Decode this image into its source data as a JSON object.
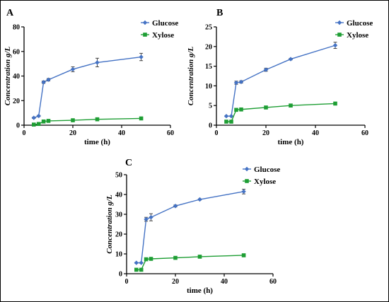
{
  "colors": {
    "glucose": "#4472C4",
    "xylose": "#1E9E34",
    "axis": "#000000"
  },
  "chart_data": [
    {
      "type": "line",
      "panel_label": "A",
      "xlabel": "time (h)",
      "ylabel": "Concentration g/L",
      "xlim": [
        0,
        60
      ],
      "ylim": [
        0,
        80
      ],
      "xticks": [
        0,
        20,
        40,
        60
      ],
      "yticks": [
        0,
        20,
        40,
        60,
        80
      ],
      "legend": "top-right",
      "grid": false,
      "series": [
        {
          "name": "Glucose",
          "marker": "diamond",
          "x": [
            4,
            6,
            8,
            10,
            20,
            30,
            48
          ],
          "y": [
            6,
            7.5,
            35,
            37,
            45.5,
            51,
            55.5
          ],
          "err": [
            0.5,
            0.5,
            1,
            1,
            2,
            3.5,
            3
          ]
        },
        {
          "name": "Xylose",
          "marker": "square",
          "x": [
            4,
            6,
            8,
            10,
            20,
            30,
            48
          ],
          "y": [
            0.5,
            1,
            3,
            3.5,
            4,
            4.8,
            5.5
          ],
          "err": [
            0,
            0,
            0.5,
            0.5,
            0.5,
            0.5,
            0.5
          ]
        }
      ]
    },
    {
      "type": "line",
      "panel_label": "B",
      "xlabel": "time (h)",
      "ylabel": "Concentration g/L",
      "xlim": [
        0,
        60
      ],
      "ylim": [
        0,
        25
      ],
      "xticks": [
        0,
        20,
        40,
        60
      ],
      "yticks": [
        0,
        5,
        10,
        15,
        20,
        25
      ],
      "legend": "top-right",
      "grid": false,
      "series": [
        {
          "name": "Glucose",
          "marker": "diamond",
          "x": [
            4,
            6,
            8,
            10,
            20,
            30,
            48
          ],
          "y": [
            2.3,
            2.3,
            10.8,
            11,
            14.1,
            16.8,
            20.3
          ],
          "err": [
            0.1,
            0.1,
            0.4,
            0.3,
            0.4,
            0.2,
            0.8
          ]
        },
        {
          "name": "Xylose",
          "marker": "square",
          "x": [
            4,
            6,
            8,
            10,
            20,
            30,
            48
          ],
          "y": [
            0.9,
            0.9,
            3.9,
            4.0,
            4.5,
            5.0,
            5.5
          ],
          "err": [
            0,
            0,
            0.2,
            0.2,
            0.2,
            0.1,
            0.2
          ]
        }
      ]
    },
    {
      "type": "line",
      "panel_label": "C",
      "xlabel": "time (h)",
      "ylabel": "Concentration g/L",
      "xlim": [
        0,
        60
      ],
      "ylim": [
        0,
        50
      ],
      "xticks": [
        0,
        20,
        40,
        60
      ],
      "yticks": [
        0,
        10,
        20,
        30,
        40,
        50
      ],
      "legend": "top-right",
      "grid": false,
      "series": [
        {
          "name": "Glucose",
          "marker": "diamond",
          "x": [
            4,
            6,
            8,
            10,
            20,
            30,
            48
          ],
          "y": [
            5.5,
            5.5,
            27.5,
            28.5,
            34.2,
            37.5,
            41.5
          ],
          "err": [
            0.2,
            0.2,
            1,
            1.8,
            0.5,
            0.3,
            1.2
          ]
        },
        {
          "name": "Xylose",
          "marker": "square",
          "x": [
            4,
            6,
            8,
            10,
            20,
            30,
            48
          ],
          "y": [
            2,
            2,
            7.3,
            7.5,
            8,
            8.6,
            9.3
          ],
          "err": [
            0,
            0,
            0.3,
            0.3,
            0.3,
            0.3,
            0.3
          ]
        }
      ]
    }
  ]
}
